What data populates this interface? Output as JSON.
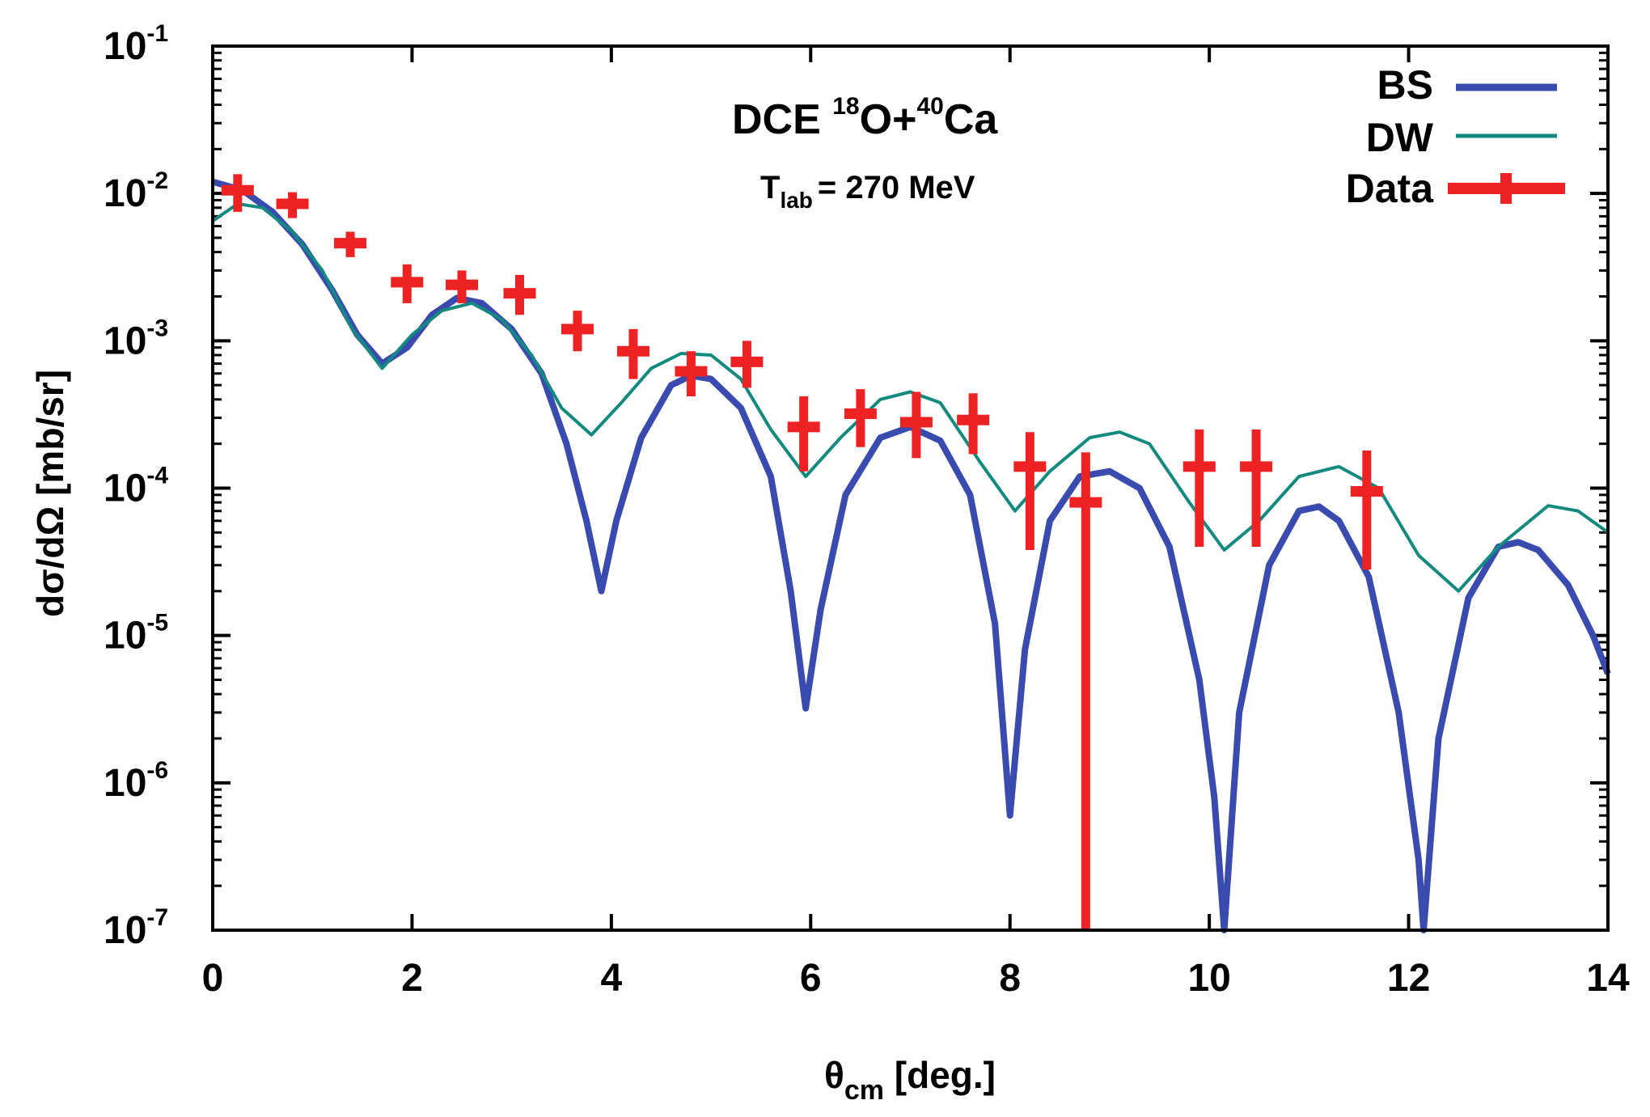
{
  "chart_data": {
    "type": "line",
    "title": {
      "prefix": "DCE ",
      "sup1": "18",
      "mid": "O+",
      "sup2": "40",
      "suffix": "Ca"
    },
    "subtitle": {
      "main": "T",
      "sub": "lab",
      "rest": "= 270 MeV"
    },
    "xlabel": {
      "main": "θ",
      "sub": "cm",
      "rest": " [deg.]"
    },
    "ylabel": "dσ/dΩ  [mb/sr]",
    "xlim": [
      0,
      14
    ],
    "ylim_log10": [
      -7,
      -1
    ],
    "y_scale": "log",
    "x_ticks": [
      "0",
      "2",
      "4",
      "6",
      "8",
      "10",
      "12",
      "14"
    ],
    "x_tick_values": [
      0,
      2,
      4,
      6,
      8,
      10,
      12,
      14
    ],
    "y_tick_exponents": [
      "-1",
      "-2",
      "-3",
      "-4",
      "-5",
      "-6",
      "-7"
    ],
    "y_tick_base": "10",
    "legend_position": "top-right",
    "legend": [
      "BS",
      "DW",
      "Data"
    ],
    "colors": {
      "bs": "#3a4bb0",
      "dw": "#128a80",
      "data": "#ee2222",
      "axis": "#000000"
    },
    "series": [
      {
        "name": "BS",
        "points": [
          [
            0.0,
            0.012
          ],
          [
            0.3,
            0.0105
          ],
          [
            0.6,
            0.0075
          ],
          [
            0.9,
            0.0045
          ],
          [
            1.2,
            0.0022
          ],
          [
            1.45,
            0.0011
          ],
          [
            1.7,
            0.0007
          ],
          [
            1.95,
            0.0009
          ],
          [
            2.2,
            0.0015
          ],
          [
            2.45,
            0.00195
          ],
          [
            2.7,
            0.0018
          ],
          [
            3.0,
            0.0012
          ],
          [
            3.3,
            0.0006
          ],
          [
            3.55,
            0.0002
          ],
          [
            3.75,
            6e-05
          ],
          [
            3.9,
            2e-05
          ],
          [
            4.05,
            6e-05
          ],
          [
            4.3,
            0.00022
          ],
          [
            4.6,
            0.0005
          ],
          [
            4.8,
            0.00058
          ],
          [
            5.0,
            0.00055
          ],
          [
            5.3,
            0.00035
          ],
          [
            5.6,
            0.00012
          ],
          [
            5.8,
            2e-05
          ],
          [
            5.95,
            3.2e-06
          ],
          [
            6.1,
            1.5e-05
          ],
          [
            6.35,
            9e-05
          ],
          [
            6.7,
            0.00022
          ],
          [
            7.0,
            0.00026
          ],
          [
            7.3,
            0.00021
          ],
          [
            7.6,
            9e-05
          ],
          [
            7.85,
            1.2e-05
          ],
          [
            8.0,
            6e-07
          ],
          [
            8.15,
            8e-06
          ],
          [
            8.4,
            6e-05
          ],
          [
            8.7,
            0.00012
          ],
          [
            9.0,
            0.00013
          ],
          [
            9.3,
            0.0001
          ],
          [
            9.6,
            4e-05
          ],
          [
            9.9,
            5e-06
          ],
          [
            10.05,
            8e-07
          ],
          [
            10.15,
            1e-07
          ],
          [
            10.3,
            3e-06
          ],
          [
            10.6,
            3e-05
          ],
          [
            10.9,
            7e-05
          ],
          [
            11.1,
            7.5e-05
          ],
          [
            11.3,
            6e-05
          ],
          [
            11.6,
            2.5e-05
          ],
          [
            11.9,
            3e-06
          ],
          [
            12.1,
            3e-07
          ],
          [
            12.15,
            1e-07
          ],
          [
            12.3,
            2e-06
          ],
          [
            12.6,
            1.8e-05
          ],
          [
            12.9,
            4e-05
          ],
          [
            13.1,
            4.3e-05
          ],
          [
            13.3,
            3.8e-05
          ],
          [
            13.6,
            2.2e-05
          ],
          [
            13.85,
            1e-05
          ],
          [
            14.0,
            5.5e-06
          ]
        ]
      },
      {
        "name": "DW",
        "points": [
          [
            0.0,
            0.0065
          ],
          [
            0.25,
            0.0085
          ],
          [
            0.5,
            0.008
          ],
          [
            0.8,
            0.0055
          ],
          [
            1.1,
            0.003
          ],
          [
            1.4,
            0.0012
          ],
          [
            1.7,
            0.00065
          ],
          [
            2.0,
            0.0011
          ],
          [
            2.3,
            0.0016
          ],
          [
            2.6,
            0.0018
          ],
          [
            2.9,
            0.0014
          ],
          [
            3.2,
            0.0008
          ],
          [
            3.5,
            0.00035
          ],
          [
            3.8,
            0.00023
          ],
          [
            4.1,
            0.00038
          ],
          [
            4.4,
            0.00065
          ],
          [
            4.7,
            0.00082
          ],
          [
            5.0,
            0.0008
          ],
          [
            5.3,
            0.00055
          ],
          [
            5.6,
            0.00025
          ],
          [
            5.95,
            0.00012
          ],
          [
            6.3,
            0.00022
          ],
          [
            6.7,
            0.0004
          ],
          [
            7.0,
            0.00045
          ],
          [
            7.3,
            0.00038
          ],
          [
            7.7,
            0.00015
          ],
          [
            8.05,
            7e-05
          ],
          [
            8.4,
            0.00013
          ],
          [
            8.8,
            0.00022
          ],
          [
            9.1,
            0.00024
          ],
          [
            9.4,
            0.0002
          ],
          [
            9.8,
            8e-05
          ],
          [
            10.15,
            3.8e-05
          ],
          [
            10.5,
            6e-05
          ],
          [
            10.9,
            0.00012
          ],
          [
            11.3,
            0.00014
          ],
          [
            11.7,
            0.0001
          ],
          [
            12.1,
            3.5e-05
          ],
          [
            12.5,
            2e-05
          ],
          [
            12.9,
            4e-05
          ],
          [
            13.4,
            7.6e-05
          ],
          [
            13.7,
            7e-05
          ],
          [
            14.0,
            5e-05
          ]
        ]
      }
    ],
    "data_points": [
      {
        "x": 0.25,
        "y": 0.0105,
        "ylo": 0.0075,
        "yhi": 0.0135
      },
      {
        "x": 0.8,
        "y": 0.0085,
        "ylo": 0.0068,
        "yhi": 0.0102
      },
      {
        "x": 1.38,
        "y": 0.0046,
        "ylo": 0.0037,
        "yhi": 0.0055
      },
      {
        "x": 1.95,
        "y": 0.0025,
        "ylo": 0.0018,
        "yhi": 0.0033
      },
      {
        "x": 2.5,
        "y": 0.0024,
        "ylo": 0.0018,
        "yhi": 0.003
      },
      {
        "x": 3.08,
        "y": 0.0021,
        "ylo": 0.0015,
        "yhi": 0.0028
      },
      {
        "x": 3.66,
        "y": 0.0012,
        "ylo": 0.00085,
        "yhi": 0.0016
      },
      {
        "x": 4.22,
        "y": 0.00085,
        "ylo": 0.00055,
        "yhi": 0.0012
      },
      {
        "x": 4.8,
        "y": 0.00062,
        "ylo": 0.00042,
        "yhi": 0.00085
      },
      {
        "x": 5.36,
        "y": 0.00072,
        "ylo": 0.00048,
        "yhi": 0.001
      },
      {
        "x": 5.93,
        "y": 0.00026,
        "ylo": 0.00013,
        "yhi": 0.00042
      },
      {
        "x": 6.5,
        "y": 0.00032,
        "ylo": 0.00019,
        "yhi": 0.00047
      },
      {
        "x": 7.06,
        "y": 0.00028,
        "ylo": 0.00016,
        "yhi": 0.00045
      },
      {
        "x": 7.63,
        "y": 0.00029,
        "ylo": 0.00017,
        "yhi": 0.00044
      },
      {
        "x": 8.2,
        "y": 0.00014,
        "ylo": 3.8e-05,
        "yhi": 0.00024
      },
      {
        "x": 8.76,
        "y": 8e-05,
        "ylo": 1e-07,
        "yhi": 0.000175
      },
      {
        "x": 9.9,
        "y": 0.00014,
        "ylo": 4e-05,
        "yhi": 0.00025
      },
      {
        "x": 10.47,
        "y": 0.00014,
        "ylo": 4e-05,
        "yhi": 0.00025
      },
      {
        "x": 11.58,
        "y": 9.5e-05,
        "ylo": 2.8e-05,
        "yhi": 0.00018
      }
    ]
  }
}
